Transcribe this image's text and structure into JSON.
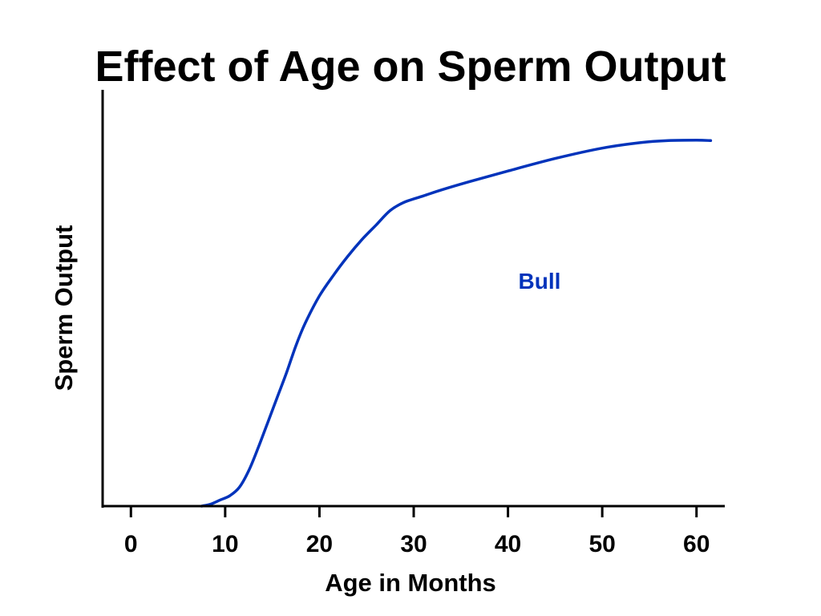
{
  "chart_data": {
    "type": "line",
    "title": "Effect of Age on Sperm Output",
    "xlabel": "Age in Months",
    "ylabel": "Sperm Output",
    "xlim": [
      -3,
      63
    ],
    "ylim": [
      0,
      100
    ],
    "xticks": [
      0,
      10,
      20,
      30,
      40,
      50,
      60
    ],
    "y_ticks_shown": false,
    "grid": false,
    "legend": "none",
    "series": [
      {
        "name": "Bull",
        "color": "#0033bb",
        "points": [
          [
            7.5,
            0
          ],
          [
            8.5,
            0.5
          ],
          [
            9.5,
            1.5
          ],
          [
            10.5,
            2.5
          ],
          [
            11.5,
            4.5
          ],
          [
            12.5,
            8.5
          ],
          [
            13.5,
            14
          ],
          [
            14.5,
            20
          ],
          [
            15.5,
            26
          ],
          [
            16.5,
            32
          ],
          [
            17.5,
            38.5
          ],
          [
            18.5,
            44
          ],
          [
            20,
            50.5
          ],
          [
            21.5,
            55.5
          ],
          [
            23,
            60
          ],
          [
            24.5,
            64
          ],
          [
            26,
            67.5
          ],
          [
            27.5,
            71
          ],
          [
            29,
            73
          ],
          [
            31,
            74.5
          ],
          [
            33,
            76
          ],
          [
            36,
            78
          ],
          [
            40,
            80.5
          ],
          [
            45,
            83.5
          ],
          [
            50,
            86
          ],
          [
            54,
            87.3
          ],
          [
            57,
            87.8
          ],
          [
            60,
            87.9
          ],
          [
            61.5,
            87.8
          ]
        ]
      }
    ]
  }
}
